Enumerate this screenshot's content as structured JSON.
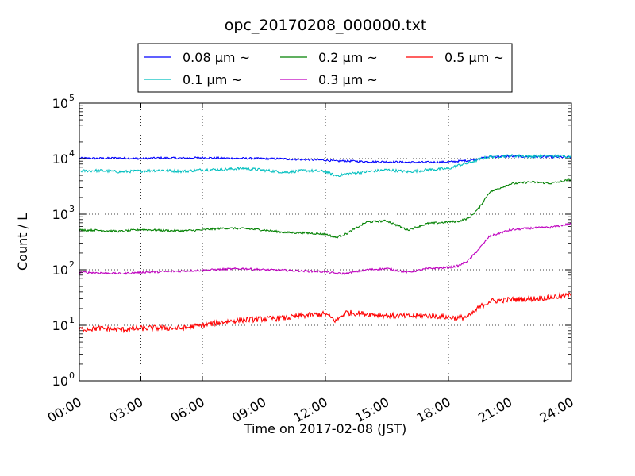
{
  "chart_data": {
    "type": "line",
    "title": "opc_20170208_000000.txt",
    "xlabel": "Time on 2017-02-08 (JST)",
    "ylabel": "Count / L",
    "x_unit": "hours",
    "xlim": [
      0,
      24
    ],
    "ylim": [
      1,
      100000
    ],
    "yscale": "log",
    "grid": true,
    "legend_placement": "top-center, above plot",
    "x_ticks": [
      {
        "value": 0,
        "label": "00:00"
      },
      {
        "value": 3,
        "label": "03:00"
      },
      {
        "value": 6,
        "label": "06:00"
      },
      {
        "value": 9,
        "label": "09:00"
      },
      {
        "value": 12,
        "label": "12:00"
      },
      {
        "value": 15,
        "label": "15:00"
      },
      {
        "value": 18,
        "label": "18:00"
      },
      {
        "value": 21,
        "label": "21:00"
      },
      {
        "value": 24,
        "label": "24:00"
      }
    ],
    "y_ticks": [
      {
        "value": 1,
        "base": "10",
        "exp": "0"
      },
      {
        "value": 10,
        "base": "10",
        "exp": "1"
      },
      {
        "value": 100,
        "base": "10",
        "exp": "2"
      },
      {
        "value": 1000,
        "base": "10",
        "exp": "3"
      },
      {
        "value": 10000,
        "base": "10",
        "exp": "4"
      },
      {
        "value": 100000,
        "base": "10",
        "exp": "5"
      }
    ],
    "x": [
      0,
      1,
      2,
      3,
      4,
      5,
      6,
      7,
      8,
      9,
      10,
      11,
      12,
      12.5,
      13,
      14,
      15,
      16,
      17,
      18,
      18.5,
      19,
      19.5,
      20,
      21,
      22,
      23,
      24
    ],
    "series": [
      {
        "name": "0.08 μm ~",
        "color": "#0000ff",
        "values": [
          10200,
          10100,
          10300,
          10000,
          10300,
          10200,
          10400,
          10200,
          10100,
          10000,
          9900,
          9600,
          9400,
          9000,
          9100,
          8800,
          8800,
          8600,
          8600,
          8700,
          9000,
          9300,
          10000,
          10800,
          11000,
          10800,
          10700,
          10600
        ]
      },
      {
        "name": "0.1 μm ~",
        "color": "#00bfbf",
        "values": [
          6000,
          6100,
          5800,
          6000,
          6200,
          5900,
          6300,
          6400,
          6700,
          6200,
          5700,
          6100,
          5900,
          4900,
          5300,
          5800,
          6300,
          5800,
          6300,
          6600,
          7600,
          8400,
          9700,
          10800,
          11300,
          11000,
          11200,
          11000
        ]
      },
      {
        "name": "0.2 μm ~",
        "color": "#008000",
        "values": [
          520,
          510,
          490,
          530,
          510,
          500,
          520,
          560,
          550,
          520,
          470,
          460,
          440,
          380,
          440,
          720,
          760,
          520,
          680,
          720,
          750,
          850,
          1300,
          2500,
          3500,
          3800,
          3600,
          4200
        ]
      },
      {
        "name": "0.3 μm ~",
        "color": "#bf00bf",
        "values": [
          90,
          88,
          85,
          90,
          92,
          95,
          98,
          102,
          105,
          100,
          98,
          95,
          92,
          86,
          85,
          100,
          105,
          90,
          105,
          110,
          118,
          150,
          240,
          400,
          520,
          560,
          580,
          680
        ]
      },
      {
        "name": "0.5 μm ~",
        "color": "#ff0000",
        "values": [
          8.5,
          8.8,
          8.3,
          8.8,
          9.0,
          8.8,
          10.0,
          11.5,
          12.5,
          13.0,
          13.5,
          15.0,
          16.0,
          12.0,
          17.0,
          16.0,
          15.0,
          14.5,
          15.0,
          14.0,
          13.5,
          14.5,
          21.0,
          27.0,
          29.0,
          30.0,
          32.0,
          35.0
        ]
      }
    ]
  }
}
